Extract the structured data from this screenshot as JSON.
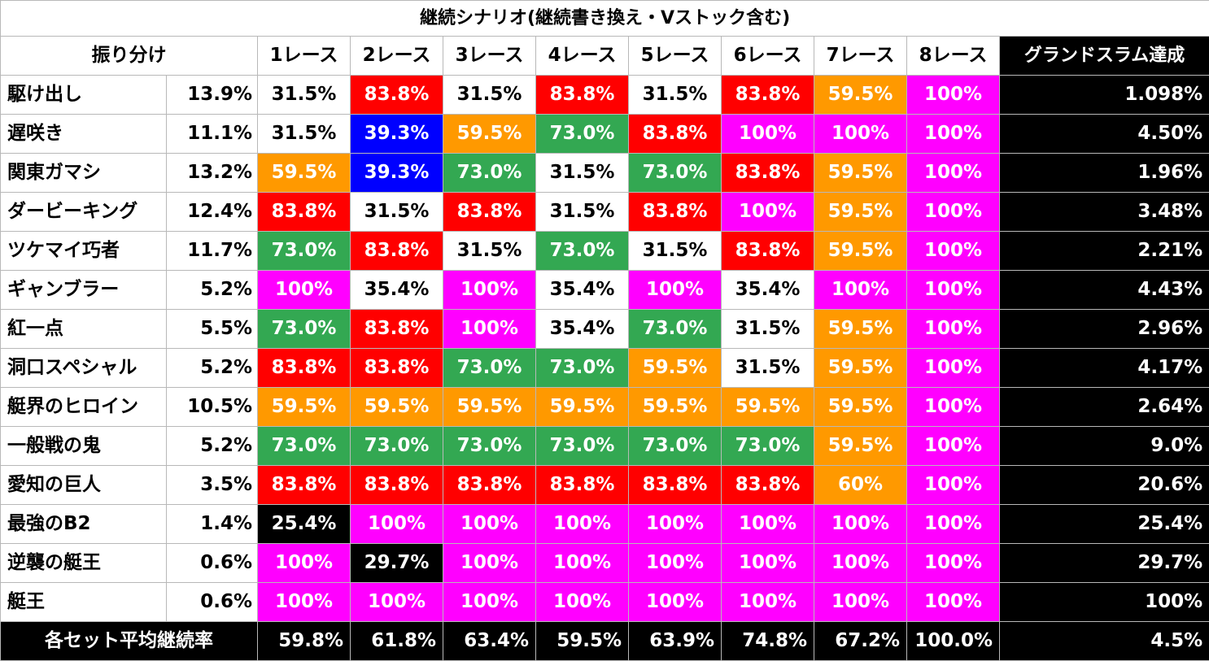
{
  "title": "継続シナリオ(継続書き換え・Vストック含む)",
  "header": {
    "label": "振り分け",
    "races": [
      "1レース",
      "2レース",
      "3レース",
      "4レース",
      "5レース",
      "6レース",
      "7レース",
      "8レース"
    ],
    "grand_slam": "グランドスラム達成"
  },
  "colors": {
    "white": "#ffffff",
    "red": "#ff0000",
    "blue": "#0000ff",
    "orange": "#ff9900",
    "green": "#33a852",
    "magenta": "#ff00ff",
    "black": "#000000"
  },
  "rows": [
    {
      "name": "駆け出し",
      "share": "13.9%",
      "rates": [
        "31.5%",
        "83.8%",
        "31.5%",
        "83.8%",
        "31.5%",
        "83.8%",
        "59.5%",
        "100%"
      ],
      "colors": [
        "white",
        "red",
        "white",
        "red",
        "white",
        "red",
        "orange",
        "magenta"
      ],
      "gs": "1.098%"
    },
    {
      "name": "遅咲き",
      "share": "11.1%",
      "rates": [
        "31.5%",
        "39.3%",
        "59.5%",
        "73.0%",
        "83.8%",
        "100%",
        "100%",
        "100%"
      ],
      "colors": [
        "white",
        "blue",
        "orange",
        "green",
        "red",
        "magenta",
        "magenta",
        "magenta"
      ],
      "gs": "4.50%"
    },
    {
      "name": "関東ガマシ",
      "share": "13.2%",
      "rates": [
        "59.5%",
        "39.3%",
        "73.0%",
        "31.5%",
        "73.0%",
        "83.8%",
        "59.5%",
        "100%"
      ],
      "colors": [
        "orange",
        "blue",
        "green",
        "white",
        "green",
        "red",
        "orange",
        "magenta"
      ],
      "gs": "1.96%"
    },
    {
      "name": "ダービーキング",
      "share": "12.4%",
      "rates": [
        "83.8%",
        "31.5%",
        "83.8%",
        "31.5%",
        "83.8%",
        "100%",
        "59.5%",
        "100%"
      ],
      "colors": [
        "red",
        "white",
        "red",
        "white",
        "red",
        "magenta",
        "orange",
        "magenta"
      ],
      "gs": "3.48%"
    },
    {
      "name": "ツケマイ巧者",
      "share": "11.7%",
      "rates": [
        "73.0%",
        "83.8%",
        "31.5%",
        "73.0%",
        "31.5%",
        "83.8%",
        "59.5%",
        "100%"
      ],
      "colors": [
        "green",
        "red",
        "white",
        "green",
        "white",
        "red",
        "orange",
        "magenta"
      ],
      "gs": "2.21%"
    },
    {
      "name": "ギャンブラー",
      "share": "5.2%",
      "rates": [
        "100%",
        "35.4%",
        "100%",
        "35.4%",
        "100%",
        "35.4%",
        "100%",
        "100%"
      ],
      "colors": [
        "magenta",
        "white",
        "magenta",
        "white",
        "magenta",
        "white",
        "magenta",
        "magenta"
      ],
      "gs": "4.43%"
    },
    {
      "name": "紅一点",
      "share": "5.5%",
      "rates": [
        "73.0%",
        "83.8%",
        "100%",
        "35.4%",
        "73.0%",
        "31.5%",
        "59.5%",
        "100%"
      ],
      "colors": [
        "green",
        "red",
        "magenta",
        "white",
        "green",
        "white",
        "orange",
        "magenta"
      ],
      "gs": "2.96%"
    },
    {
      "name": "洞口スペシャル",
      "share": "5.2%",
      "rates": [
        "83.8%",
        "83.8%",
        "73.0%",
        "73.0%",
        "59.5%",
        "31.5%",
        "59.5%",
        "100%"
      ],
      "colors": [
        "red",
        "red",
        "green",
        "green",
        "orange",
        "white",
        "orange",
        "magenta"
      ],
      "gs": "4.17%"
    },
    {
      "name": "艇界のヒロイン",
      "share": "10.5%",
      "rates": [
        "59.5%",
        "59.5%",
        "59.5%",
        "59.5%",
        "59.5%",
        "59.5%",
        "59.5%",
        "100%"
      ],
      "colors": [
        "orange",
        "orange",
        "orange",
        "orange",
        "orange",
        "orange",
        "orange",
        "magenta"
      ],
      "gs": "2.64%"
    },
    {
      "name": "一般戦の鬼",
      "share": "5.2%",
      "rates": [
        "73.0%",
        "73.0%",
        "73.0%",
        "73.0%",
        "73.0%",
        "73.0%",
        "59.5%",
        "100%"
      ],
      "colors": [
        "green",
        "green",
        "green",
        "green",
        "green",
        "green",
        "orange",
        "magenta"
      ],
      "gs": "9.0%"
    },
    {
      "name": "愛知の巨人",
      "share": "3.5%",
      "rates": [
        "83.8%",
        "83.8%",
        "83.8%",
        "83.8%",
        "83.8%",
        "83.8%",
        "60%",
        "100%"
      ],
      "colors": [
        "red",
        "red",
        "red",
        "red",
        "red",
        "red",
        "orange",
        "magenta"
      ],
      "gs": "20.6%"
    },
    {
      "name": "最強のB2",
      "share": "1.4%",
      "rates": [
        "25.4%",
        "100%",
        "100%",
        "100%",
        "100%",
        "100%",
        "100%",
        "100%"
      ],
      "colors": [
        "black",
        "magenta",
        "magenta",
        "magenta",
        "magenta",
        "magenta",
        "magenta",
        "magenta"
      ],
      "gs": "25.4%"
    },
    {
      "name": "逆襲の艇王",
      "share": "0.6%",
      "rates": [
        "100%",
        "29.7%",
        "100%",
        "100%",
        "100%",
        "100%",
        "100%",
        "100%"
      ],
      "colors": [
        "magenta",
        "black",
        "magenta",
        "magenta",
        "magenta",
        "magenta",
        "magenta",
        "magenta"
      ],
      "gs": "29.7%"
    },
    {
      "name": "艇王",
      "share": "0.6%",
      "rates": [
        "100%",
        "100%",
        "100%",
        "100%",
        "100%",
        "100%",
        "100%",
        "100%"
      ],
      "colors": [
        "magenta",
        "magenta",
        "magenta",
        "magenta",
        "magenta",
        "magenta",
        "magenta",
        "magenta"
      ],
      "gs": "100%"
    }
  ],
  "footer": {
    "label": "各セット平均継続率",
    "averages": [
      "59.8%",
      "61.8%",
      "63.4%",
      "59.5%",
      "63.9%",
      "74.8%",
      "67.2%",
      "100.0%"
    ],
    "gs": "4.5%"
  }
}
